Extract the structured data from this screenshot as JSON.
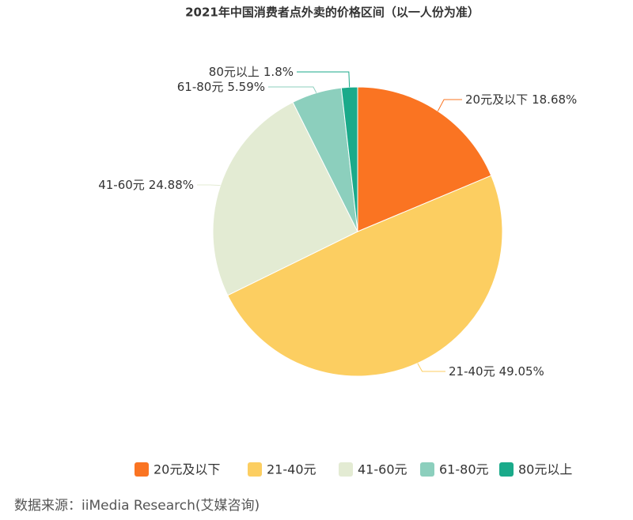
{
  "chart_data": {
    "type": "pie",
    "title": "2021年中国消费者点外卖的价格区间（以一人份为准）",
    "categories": [
      "20元及以下",
      "21-40元",
      "41-60元",
      "61-80元",
      "80元以上"
    ],
    "values": [
      18.68,
      49.05,
      24.88,
      5.59,
      1.8
    ],
    "value_labels": [
      "18.68%",
      "49.05%",
      "24.88%",
      "5.59%",
      "1.8%"
    ],
    "colors": [
      "#fa7422",
      "#fcce61",
      "#e3ebd3",
      "#8ccfbd",
      "#1aaa8a"
    ],
    "legend": "bottom",
    "source": "数据来源：iiMedia Research(艾媒咨询)"
  }
}
